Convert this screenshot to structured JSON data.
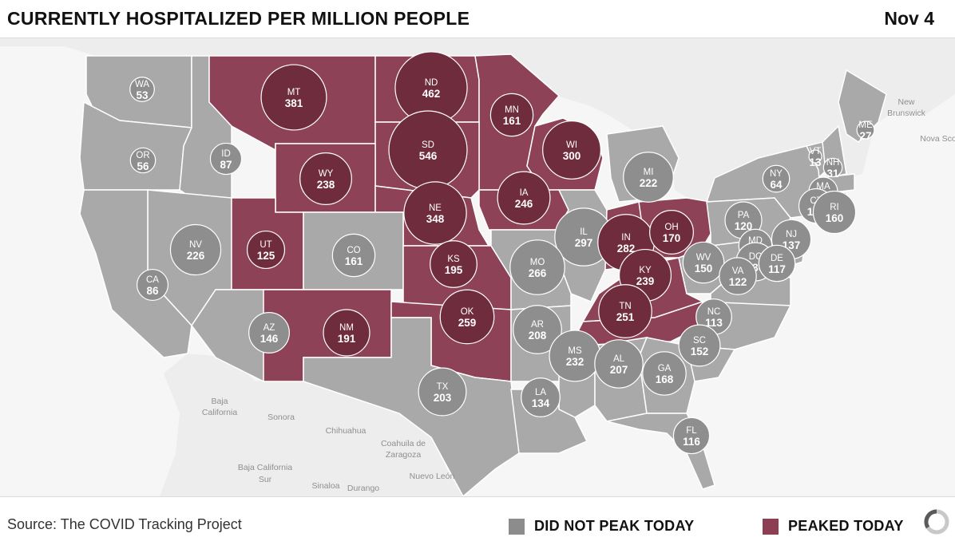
{
  "header": {
    "title": "CURRENTLY HOSPITALIZED PER MILLION PEOPLE",
    "date": "Nov 4"
  },
  "footer": {
    "source": "Source: The COVID Tracking Project",
    "legend": [
      {
        "label": "DID NOT PEAK TODAY",
        "color": "#8c8c8c"
      },
      {
        "label": "PEAKED TODAY",
        "color": "#8c3f52"
      }
    ]
  },
  "colors": {
    "grey_state": "#a9a9a9",
    "peak_state": "#8d4257",
    "grey_bubble": "#8e8e8e",
    "peak_bubble": "#6f2c3d",
    "land_other": "#ededed",
    "water": "#f6f6f6",
    "border": "#ffffff"
  },
  "geo_labels": [
    "New Brunswick",
    "Nova Scotia",
    "Baja California",
    "Sonora",
    "Chihuahua",
    "Coahuila de Zaragoza",
    "Baja California Sur",
    "Sinaloa",
    "Durango",
    "Nuevo León"
  ],
  "states": [
    {
      "abbr": "WA",
      "value": 53,
      "peaked": false
    },
    {
      "abbr": "OR",
      "value": 56,
      "peaked": false
    },
    {
      "abbr": "ID",
      "value": 87,
      "peaked": false
    },
    {
      "abbr": "MT",
      "value": 381,
      "peaked": true
    },
    {
      "abbr": "ND",
      "value": 462,
      "peaked": true
    },
    {
      "abbr": "MN",
      "value": 161,
      "peaked": true
    },
    {
      "abbr": "SD",
      "value": 546,
      "peaked": true
    },
    {
      "abbr": "WY",
      "value": 238,
      "peaked": true
    },
    {
      "abbr": "WI",
      "value": 300,
      "peaked": true
    },
    {
      "abbr": "MI",
      "value": 222,
      "peaked": false
    },
    {
      "abbr": "ME",
      "value": 27,
      "peaked": false
    },
    {
      "abbr": "VT",
      "value": 13,
      "peaked": false
    },
    {
      "abbr": "NH",
      "value": 31,
      "peaked": false
    },
    {
      "abbr": "NY",
      "value": 64,
      "peaked": false
    },
    {
      "abbr": "MA",
      "value": 73,
      "peaked": false
    },
    {
      "abbr": "CT",
      "value": 105,
      "peaked": false
    },
    {
      "abbr": "RI",
      "value": 160,
      "peaked": false
    },
    {
      "abbr": "IA",
      "value": 246,
      "peaked": true
    },
    {
      "abbr": "NE",
      "value": 348,
      "peaked": true
    },
    {
      "abbr": "IL",
      "value": 297,
      "peaked": false
    },
    {
      "abbr": "IN",
      "value": 282,
      "peaked": true
    },
    {
      "abbr": "OH",
      "value": 170,
      "peaked": true
    },
    {
      "abbr": "PA",
      "value": 120,
      "peaked": false
    },
    {
      "abbr": "NJ",
      "value": 137,
      "peaked": false
    },
    {
      "abbr": "NV",
      "value": 226,
      "peaked": false
    },
    {
      "abbr": "UT",
      "value": 125,
      "peaked": true
    },
    {
      "abbr": "CO",
      "value": 161,
      "peaked": false
    },
    {
      "abbr": "KS",
      "value": 195,
      "peaked": true
    },
    {
      "abbr": "MO",
      "value": 266,
      "peaked": false
    },
    {
      "abbr": "KY",
      "value": 239,
      "peaked": true
    },
    {
      "abbr": "WV",
      "value": 150,
      "peaked": false
    },
    {
      "abbr": "MD",
      "value": 98,
      "peaked": false
    },
    {
      "abbr": "DC",
      "value": 130,
      "peaked": false
    },
    {
      "abbr": "DE",
      "value": 117,
      "peaked": false
    },
    {
      "abbr": "VA",
      "value": 122,
      "peaked": false
    },
    {
      "abbr": "CA",
      "value": 86,
      "peaked": false
    },
    {
      "abbr": "AZ",
      "value": 146,
      "peaked": false
    },
    {
      "abbr": "NM",
      "value": 191,
      "peaked": true
    },
    {
      "abbr": "OK",
      "value": 259,
      "peaked": true
    },
    {
      "abbr": "AR",
      "value": 208,
      "peaked": false
    },
    {
      "abbr": "TN",
      "value": 251,
      "peaked": true
    },
    {
      "abbr": "NC",
      "value": 113,
      "peaked": false
    },
    {
      "abbr": "SC",
      "value": 152,
      "peaked": false
    },
    {
      "abbr": "MS",
      "value": 232,
      "peaked": false
    },
    {
      "abbr": "AL",
      "value": 207,
      "peaked": false
    },
    {
      "abbr": "GA",
      "value": 168,
      "peaked": false
    },
    {
      "abbr": "TX",
      "value": 203,
      "peaked": false
    },
    {
      "abbr": "LA",
      "value": 134,
      "peaked": false
    },
    {
      "abbr": "FL",
      "value": 116,
      "peaked": false
    }
  ]
}
